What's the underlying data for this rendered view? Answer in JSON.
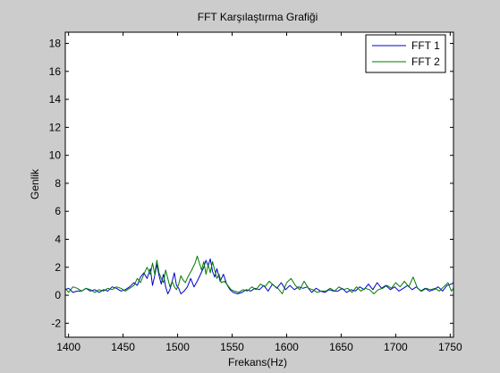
{
  "chart_data": {
    "type": "line",
    "title": "FFT Karşılaştırma Grafiği",
    "xlabel": "Frekans(Hz)",
    "ylabel": "Genlik",
    "xlim": [
      1397,
      1753
    ],
    "ylim": [
      -3,
      18.8
    ],
    "x_ticks": [
      1400,
      1450,
      1500,
      1550,
      1600,
      1650,
      1700,
      1750
    ],
    "y_ticks": [
      -2,
      0,
      2,
      4,
      6,
      8,
      10,
      12,
      14,
      16,
      18
    ],
    "grid": false,
    "legend_position": "top-right",
    "series": [
      {
        "name": "FFT 1",
        "color": "#0000cc",
        "points": [
          [
            1397,
            0.4
          ],
          [
            1400,
            0.5
          ],
          [
            1404,
            0.2
          ],
          [
            1408,
            0.3
          ],
          [
            1412,
            0.3
          ],
          [
            1416,
            0.5
          ],
          [
            1420,
            0.3
          ],
          [
            1424,
            0.4
          ],
          [
            1428,
            0.2
          ],
          [
            1432,
            0.4
          ],
          [
            1436,
            0.3
          ],
          [
            1440,
            0.6
          ],
          [
            1444,
            0.5
          ],
          [
            1448,
            0.3
          ],
          [
            1452,
            0.4
          ],
          [
            1456,
            0.6
          ],
          [
            1460,
            0.9
          ],
          [
            1463,
            0.7
          ],
          [
            1466,
            1.3
          ],
          [
            1469,
            1.6
          ],
          [
            1472,
            1.2
          ],
          [
            1475,
            1.9
          ],
          [
            1477,
            0.7
          ],
          [
            1479,
            1.4
          ],
          [
            1481,
            2.2
          ],
          [
            1483,
            1.4
          ],
          [
            1485,
            0.8
          ],
          [
            1487,
            1.5
          ],
          [
            1489,
            0.6
          ],
          [
            1491,
            0.1
          ],
          [
            1493,
            0.4
          ],
          [
            1495,
            1.0
          ],
          [
            1497,
            1.6
          ],
          [
            1499,
            0.7
          ],
          [
            1501,
            0.5
          ],
          [
            1503,
            0.1
          ],
          [
            1506,
            0.3
          ],
          [
            1509,
            0.6
          ],
          [
            1512,
            1.2
          ],
          [
            1515,
            0.6
          ],
          [
            1518,
            1.0
          ],
          [
            1521,
            1.5
          ],
          [
            1524,
            2.0
          ],
          [
            1526,
            2.5
          ],
          [
            1528,
            2.1
          ],
          [
            1530,
            2.6
          ],
          [
            1532,
            1.7
          ],
          [
            1534,
            1.3
          ],
          [
            1536,
            1.9
          ],
          [
            1539,
            1.0
          ],
          [
            1542,
            1.5
          ],
          [
            1545,
            0.8
          ],
          [
            1548,
            0.4
          ],
          [
            1551,
            0.2
          ],
          [
            1555,
            0.1
          ],
          [
            1559,
            0.2
          ],
          [
            1563,
            0.4
          ],
          [
            1567,
            0.3
          ],
          [
            1571,
            0.5
          ],
          [
            1575,
            0.4
          ],
          [
            1579,
            0.7
          ],
          [
            1583,
            0.3
          ],
          [
            1587,
            0.8
          ],
          [
            1591,
            0.5
          ],
          [
            1595,
            0.9
          ],
          [
            1599,
            0.4
          ],
          [
            1603,
            0.7
          ],
          [
            1607,
            0.4
          ],
          [
            1611,
            0.6
          ],
          [
            1615,
            0.5
          ],
          [
            1619,
            0.6
          ],
          [
            1623,
            0.2
          ],
          [
            1627,
            0.5
          ],
          [
            1631,
            0.3
          ],
          [
            1635,
            0.2
          ],
          [
            1639,
            0.4
          ],
          [
            1643,
            0.3
          ],
          [
            1647,
            0.3
          ],
          [
            1651,
            0.5
          ],
          [
            1655,
            0.2
          ],
          [
            1659,
            0.4
          ],
          [
            1663,
            0.3
          ],
          [
            1667,
            0.6
          ],
          [
            1671,
            0.4
          ],
          [
            1675,
            0.8
          ],
          [
            1679,
            0.4
          ],
          [
            1683,
            0.9
          ],
          [
            1687,
            0.5
          ],
          [
            1691,
            0.7
          ],
          [
            1695,
            0.4
          ],
          [
            1699,
            0.6
          ],
          [
            1703,
            0.3
          ],
          [
            1707,
            0.5
          ],
          [
            1711,
            0.7
          ],
          [
            1715,
            0.4
          ],
          [
            1719,
            0.6
          ],
          [
            1723,
            0.3
          ],
          [
            1727,
            0.5
          ],
          [
            1731,
            0.3
          ],
          [
            1735,
            0.4
          ],
          [
            1739,
            0.6
          ],
          [
            1743,
            0.3
          ],
          [
            1747,
            0.7
          ],
          [
            1751,
            0.8
          ],
          [
            1753,
            0.9
          ]
        ]
      },
      {
        "name": "FFT 2",
        "color": "#007a00",
        "points": [
          [
            1397,
            0.5
          ],
          [
            1400,
            0.2
          ],
          [
            1404,
            0.6
          ],
          [
            1408,
            0.5
          ],
          [
            1412,
            0.3
          ],
          [
            1416,
            0.5
          ],
          [
            1420,
            0.4
          ],
          [
            1424,
            0.2
          ],
          [
            1428,
            0.4
          ],
          [
            1432,
            0.3
          ],
          [
            1436,
            0.5
          ],
          [
            1440,
            0.4
          ],
          [
            1444,
            0.6
          ],
          [
            1448,
            0.5
          ],
          [
            1452,
            0.3
          ],
          [
            1456,
            0.5
          ],
          [
            1460,
            0.7
          ],
          [
            1463,
            1.2
          ],
          [
            1466,
            0.9
          ],
          [
            1469,
            1.5
          ],
          [
            1472,
            2.0
          ],
          [
            1475,
            1.5
          ],
          [
            1477,
            2.3
          ],
          [
            1479,
            1.5
          ],
          [
            1481,
            2.5
          ],
          [
            1483,
            1.6
          ],
          [
            1485,
            1.2
          ],
          [
            1487,
            0.9
          ],
          [
            1489,
            1.8
          ],
          [
            1491,
            1.2
          ],
          [
            1493,
            0.6
          ],
          [
            1495,
            1.0
          ],
          [
            1497,
            0.6
          ],
          [
            1499,
            0.4
          ],
          [
            1501,
            0.8
          ],
          [
            1503,
            1.4
          ],
          [
            1505,
            1.1
          ],
          [
            1507,
            0.9
          ],
          [
            1510,
            1.4
          ],
          [
            1513,
            1.8
          ],
          [
            1516,
            2.3
          ],
          [
            1518,
            2.8
          ],
          [
            1520,
            2.3
          ],
          [
            1522,
            1.8
          ],
          [
            1524,
            2.4
          ],
          [
            1526,
            1.5
          ],
          [
            1528,
            2.2
          ],
          [
            1530,
            1.6
          ],
          [
            1532,
            2.4
          ],
          [
            1534,
            1.8
          ],
          [
            1536,
            1.2
          ],
          [
            1538,
            1.5
          ],
          [
            1540,
            0.9
          ],
          [
            1543,
            1.0
          ],
          [
            1546,
            0.7
          ],
          [
            1549,
            0.4
          ],
          [
            1552,
            0.3
          ],
          [
            1556,
            0.2
          ],
          [
            1560,
            0.4
          ],
          [
            1564,
            0.3
          ],
          [
            1568,
            0.6
          ],
          [
            1572,
            0.4
          ],
          [
            1576,
            0.8
          ],
          [
            1580,
            0.6
          ],
          [
            1584,
            1.0
          ],
          [
            1588,
            0.7
          ],
          [
            1592,
            0.5
          ],
          [
            1596,
            0.1
          ],
          [
            1600,
            0.9
          ],
          [
            1604,
            1.2
          ],
          [
            1608,
            0.7
          ],
          [
            1612,
            0.4
          ],
          [
            1616,
            1.0
          ],
          [
            1620,
            0.5
          ],
          [
            1624,
            0.4
          ],
          [
            1628,
            0.2
          ],
          [
            1632,
            0.3
          ],
          [
            1636,
            0.3
          ],
          [
            1640,
            0.5
          ],
          [
            1644,
            0.3
          ],
          [
            1648,
            0.6
          ],
          [
            1652,
            0.4
          ],
          [
            1656,
            0.5
          ],
          [
            1660,
            0.2
          ],
          [
            1664,
            0.6
          ],
          [
            1668,
            0.3
          ],
          [
            1672,
            0.5
          ],
          [
            1676,
            0.4
          ],
          [
            1680,
            0.1
          ],
          [
            1684,
            0.4
          ],
          [
            1688,
            0.5
          ],
          [
            1692,
            0.7
          ],
          [
            1696,
            0.5
          ],
          [
            1700,
            0.9
          ],
          [
            1704,
            0.6
          ],
          [
            1708,
            1.0
          ],
          [
            1712,
            0.6
          ],
          [
            1716,
            1.3
          ],
          [
            1720,
            0.5
          ],
          [
            1724,
            0.3
          ],
          [
            1728,
            0.5
          ],
          [
            1732,
            0.4
          ],
          [
            1736,
            0.5
          ],
          [
            1740,
            0.3
          ],
          [
            1744,
            0.6
          ],
          [
            1748,
            0.9
          ],
          [
            1751,
            0.3
          ],
          [
            1753,
            0.5
          ]
        ]
      }
    ]
  }
}
